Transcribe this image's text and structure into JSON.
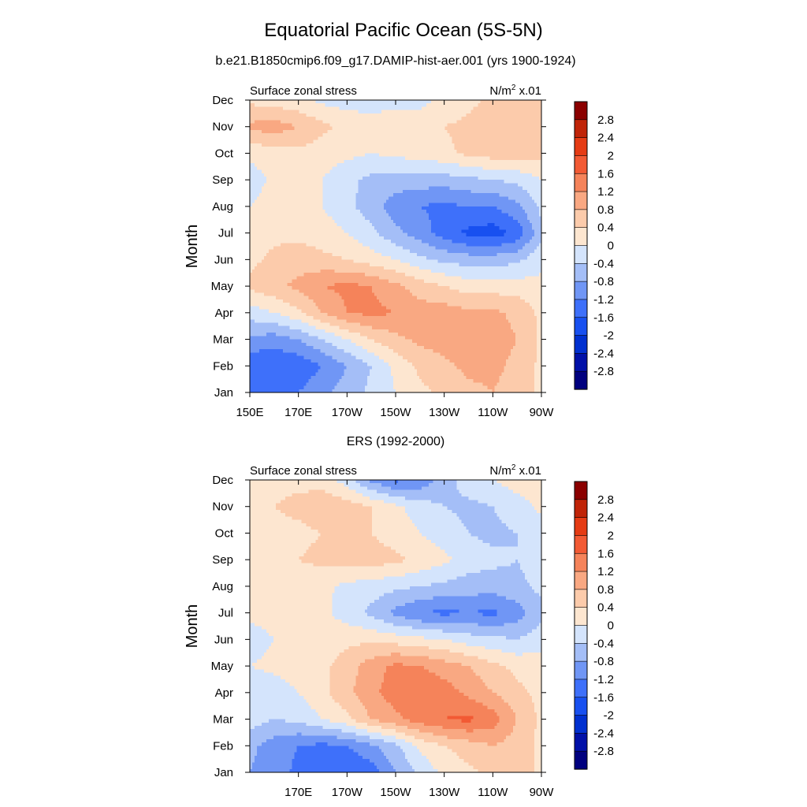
{
  "figure": {
    "title": "Equatorial Pacific Ocean (5S-5N)",
    "subtitle": "b.e21.B1850cmip6.f09_g17.DAMIP-hist-aer.001 (yrs 1900-1924)",
    "second_title": "ERS (1992-2000)"
  },
  "colorbar": {
    "labels": [
      "2.8",
      "2.4",
      "2",
      "1.6",
      "1.2",
      "0.8",
      "0.4",
      "0",
      "-0.4",
      "-0.8",
      "-1.2",
      "-1.6",
      "-2",
      "-2.4",
      "-2.8"
    ],
    "levels": [
      -2.8,
      -2.4,
      -2.0,
      -1.6,
      -1.2,
      -0.8,
      -0.4,
      0,
      0.4,
      0.8,
      1.2,
      1.6,
      2.0,
      2.4,
      2.8
    ],
    "colors": [
      "#00007f",
      "#0010a8",
      "#0030d0",
      "#1850f0",
      "#3e70fa",
      "#7096f5",
      "#a4bef7",
      "#d4e4fc",
      "#fde6d0",
      "#fccbab",
      "#f9a882",
      "#f5835a",
      "#f25a34",
      "#e53b14",
      "#c02408",
      "#8b0000"
    ]
  },
  "chart_data": [
    {
      "type": "heatmap",
      "title": "Surface zonal stress",
      "units_label": "N/m",
      "units_sup": "2",
      "units_scale": " x.01",
      "ylabel": "Month",
      "months": [
        "Jan",
        "Feb",
        "Mar",
        "Apr",
        "May",
        "Jun",
        "Jul",
        "Aug",
        "Sep",
        "Oct",
        "Nov",
        "Dec"
      ],
      "month_values": [
        1,
        2,
        3,
        4,
        5,
        6,
        7,
        8,
        9,
        10,
        11,
        12
      ],
      "x_tick_labels": [
        "150E",
        "170E",
        "170W",
        "150W",
        "130W",
        "110W",
        "90W"
      ],
      "x_tick_values": [
        150,
        170,
        190,
        210,
        230,
        250,
        270
      ],
      "xlim": [
        150,
        270
      ],
      "ylim": [
        1,
        12
      ],
      "lon": [
        150,
        160,
        170,
        180,
        190,
        200,
        210,
        220,
        230,
        240,
        250,
        260,
        270
      ],
      "values": [
        [
          -1.2,
          -1.4,
          -1.2,
          -0.9,
          -0.6,
          -0.3,
          0.0,
          0.3,
          0.5,
          0.7,
          0.8,
          0.6,
          0.3
        ],
        [
          -1.5,
          -1.6,
          -1.5,
          -1.2,
          -0.8,
          -0.4,
          0.1,
          0.5,
          0.7,
          0.9,
          0.9,
          0.7,
          0.3
        ],
        [
          -0.9,
          -1.0,
          -0.8,
          -0.4,
          0.0,
          0.4,
          0.7,
          0.9,
          1.0,
          1.0,
          1.0,
          0.8,
          0.3
        ],
        [
          -0.2,
          0.0,
          0.3,
          0.8,
          1.2,
          1.3,
          1.2,
          1.0,
          1.0,
          0.9,
          0.9,
          0.7,
          0.3
        ],
        [
          0.5,
          0.7,
          0.9,
          1.2,
          1.3,
          1.2,
          0.9,
          0.6,
          0.4,
          0.2,
          0.2,
          0.2,
          0.1
        ],
        [
          0.3,
          0.5,
          0.6,
          0.5,
          0.4,
          0.2,
          0.0,
          -0.3,
          -0.5,
          -0.6,
          -0.6,
          -0.5,
          -0.1
        ],
        [
          0.2,
          0.3,
          0.3,
          0.2,
          0.0,
          -0.3,
          -0.7,
          -1.0,
          -1.4,
          -1.7,
          -1.8,
          -1.5,
          -0.5
        ],
        [
          0.0,
          0.2,
          0.2,
          0.0,
          -0.3,
          -0.6,
          -1.0,
          -1.2,
          -1.3,
          -1.2,
          -1.2,
          -0.9,
          -0.3
        ],
        [
          -0.2,
          0.1,
          0.2,
          0.0,
          -0.3,
          -0.5,
          -0.6,
          -0.6,
          -0.6,
          -0.5,
          -0.4,
          -0.3,
          0.0
        ],
        [
          0.1,
          0.2,
          0.3,
          0.2,
          0.1,
          0.0,
          0.1,
          0.2,
          0.3,
          0.5,
          0.6,
          0.6,
          0.5
        ],
        [
          0.9,
          1.0,
          0.8,
          0.5,
          0.3,
          0.2,
          0.2,
          0.2,
          0.4,
          0.5,
          0.6,
          0.6,
          0.5
        ],
        [
          0.3,
          0.2,
          0.1,
          -0.1,
          -0.2,
          -0.2,
          -0.1,
          -0.1,
          0.1,
          0.3,
          0.5,
          0.5,
          0.5
        ]
      ]
    },
    {
      "type": "heatmap",
      "title": "Surface zonal stress",
      "units_label": "N/m",
      "units_sup": "2",
      "units_scale": " x.01",
      "ylabel": "Month",
      "months": [
        "Jan",
        "Feb",
        "Mar",
        "Apr",
        "May",
        "Jun",
        "Jul",
        "Aug",
        "Sep",
        "Oct",
        "Nov",
        "Dec"
      ],
      "month_values": [
        1,
        2,
        3,
        4,
        5,
        6,
        7,
        8,
        9,
        10,
        11,
        12
      ],
      "x_tick_labels": [
        "170E",
        "170W",
        "150W",
        "130W",
        "110W",
        "90W"
      ],
      "x_tick_values": [
        170,
        190,
        210,
        230,
        250,
        270
      ],
      "xlim": [
        150,
        270
      ],
      "ylim": [
        1,
        12
      ],
      "lon": [
        150,
        160,
        170,
        180,
        190,
        200,
        210,
        220,
        230,
        240,
        250,
        260,
        270
      ],
      "values": [
        [
          -0.8,
          -1.0,
          -1.3,
          -1.5,
          -1.6,
          -1.4,
          -0.8,
          -0.3,
          0.1,
          0.3,
          0.5,
          0.6,
          0.3
        ],
        [
          -0.7,
          -1.0,
          -1.2,
          -1.3,
          -1.2,
          -0.9,
          -0.5,
          0.1,
          0.4,
          0.6,
          0.8,
          0.6,
          0.3
        ],
        [
          -0.2,
          -0.4,
          -0.3,
          0.0,
          0.3,
          0.8,
          1.1,
          1.4,
          1.6,
          1.7,
          1.4,
          0.8,
          0.3
        ],
        [
          -0.3,
          -0.2,
          0.0,
          0.3,
          0.7,
          1.1,
          1.4,
          1.6,
          1.4,
          1.1,
          0.8,
          0.5,
          0.3
        ],
        [
          0.0,
          0.1,
          0.2,
          0.3,
          0.6,
          1.0,
          1.3,
          1.2,
          1.0,
          0.8,
          0.5,
          0.3,
          0.2
        ],
        [
          -0.2,
          0.0,
          0.1,
          0.2,
          0.3,
          0.3,
          0.2,
          0.1,
          0.0,
          -0.2,
          -0.3,
          -0.4,
          -0.2
        ],
        [
          0.1,
          0.2,
          0.2,
          0.1,
          -0.2,
          -0.5,
          -0.9,
          -1.2,
          -1.3,
          -1.2,
          -1.3,
          -1.0,
          -0.5
        ],
        [
          0.1,
          0.2,
          0.2,
          0.1,
          -0.1,
          -0.2,
          -0.3,
          -0.4,
          -0.5,
          -0.6,
          -0.6,
          -0.5,
          -0.3
        ],
        [
          0.1,
          0.3,
          0.4,
          0.5,
          0.6,
          0.6,
          0.5,
          0.3,
          0.1,
          -0.2,
          -0.3,
          -0.4,
          -0.2
        ],
        [
          0.2,
          0.3,
          0.3,
          0.4,
          0.5,
          0.4,
          0.2,
          0.0,
          -0.2,
          -0.4,
          -0.5,
          -0.4,
          -0.2
        ],
        [
          0.3,
          0.4,
          0.5,
          0.7,
          0.6,
          0.4,
          0.1,
          -0.2,
          -0.4,
          -0.5,
          -0.4,
          -0.2,
          0.1
        ],
        [
          0.2,
          0.3,
          0.3,
          0.2,
          -0.2,
          -0.9,
          -1.3,
          -1.1,
          -0.6,
          -0.2,
          0.0,
          0.2,
          0.3
        ]
      ]
    }
  ]
}
